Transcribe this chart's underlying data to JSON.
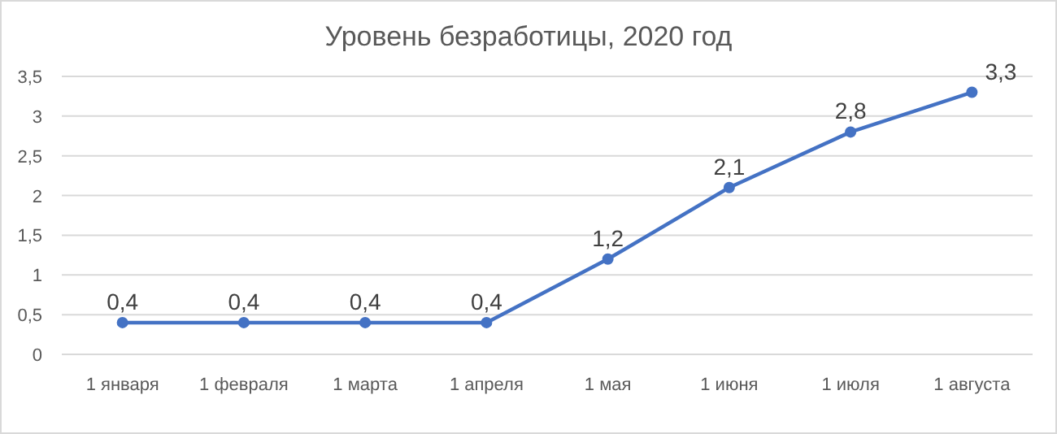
{
  "chart_data": {
    "type": "line",
    "title": "Уровень безработицы, 2020 год",
    "categories": [
      "1 января",
      "1 февраля",
      "1 марта",
      "1 апреля",
      "1 мая",
      "1 июня",
      "1 июля",
      "1 августа"
    ],
    "series": [
      {
        "color": "#4472c4",
        "values": [
          0.4,
          0.4,
          0.4,
          0.4,
          1.2,
          2.1,
          2.8,
          3.3
        ],
        "value_labels": [
          "0,4",
          "0,4",
          "0,4",
          "0,4",
          "1,2",
          "2,1",
          "2,8",
          "3,3"
        ]
      }
    ],
    "ylim": [
      0,
      3.5
    ],
    "yticks": [
      0,
      {
        "value": 0.5,
        "label": "0,5"
      },
      1,
      {
        "value": 1.5,
        "label": "1,5"
      },
      2,
      {
        "value": 2.5,
        "label": "2,5"
      },
      3,
      {
        "value": 3.5,
        "label": "3,5"
      }
    ],
    "grid": "y",
    "marker": "circle",
    "line_style": "solid"
  }
}
